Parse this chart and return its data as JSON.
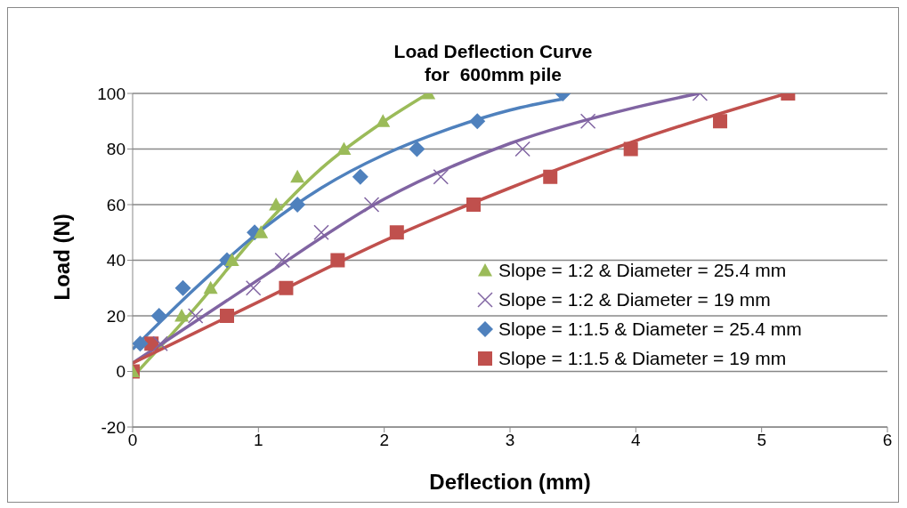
{
  "chart_data": {
    "type": "scatter",
    "title": "Load Deflection Curve\nfor  600mm pile",
    "xlabel": "Deflection (mm)",
    "ylabel": "Load (N)",
    "xlim": [
      0,
      6
    ],
    "xticks": [
      0,
      1,
      2,
      3,
      4,
      5,
      6
    ],
    "ylim": [
      -20,
      100
    ],
    "yticks": [
      -20,
      0,
      20,
      40,
      60,
      80,
      100
    ],
    "grid": "y",
    "legend": "bottom right",
    "series": [
      {
        "name": "Slope = 1:2 & Diameter = 25.4 mm",
        "color": "#9bbb59",
        "marker": "triangle",
        "x": [
          0,
          0.39,
          0.62,
          0.79,
          1.02,
          1.14,
          1.31,
          1.68,
          1.99,
          2.35
        ],
        "values": [
          0,
          20,
          30,
          40,
          50,
          60,
          70,
          80,
          90,
          100
        ]
      },
      {
        "name": "Slope = 1:2 & Diameter = 19 mm",
        "color": "#8064a2",
        "marker": "cross",
        "x": [
          0.22,
          0.5,
          0.96,
          1.19,
          1.5,
          1.9,
          2.45,
          3.1,
          3.62,
          4.51
        ],
        "values": [
          10,
          20,
          30,
          40,
          50,
          60,
          70,
          80,
          90,
          100
        ]
      },
      {
        "name": "Slope = 1:1.5 & Diameter = 25.4 mm",
        "color": "#4f81bd",
        "marker": "diamond",
        "x": [
          0.06,
          0.21,
          0.4,
          0.75,
          0.97,
          1.31,
          1.81,
          2.26,
          2.74,
          3.42
        ],
        "values": [
          10,
          20,
          30,
          40,
          50,
          60,
          70,
          80,
          90,
          100
        ]
      },
      {
        "name": "Slope = 1:1.5 & Diameter = 19 mm",
        "color": "#c0504d",
        "marker": "square",
        "x": [
          0,
          0.15,
          0.75,
          1.22,
          1.63,
          2.1,
          2.71,
          3.32,
          3.96,
          4.67,
          5.21
        ],
        "values": [
          0,
          10,
          20,
          30,
          40,
          50,
          60,
          70,
          80,
          90,
          100
        ]
      },
      {
        "type": "line",
        "color": "#9bbb59",
        "marker": "none",
        "x": [
          0,
          0.5,
          1,
          1.5,
          2,
          2.35
        ],
        "values": [
          -2,
          23,
          50,
          73,
          90,
          100
        ]
      },
      {
        "type": "line",
        "color": "#8064a2",
        "marker": "none",
        "x": [
          0,
          1,
          2,
          3,
          4,
          4.5
        ],
        "values": [
          3,
          33,
          62,
          82,
          95,
          100
        ]
      },
      {
        "type": "line",
        "color": "#4f81bd",
        "marker": "none",
        "x": [
          0,
          0.5,
          1,
          1.5,
          2,
          2.5,
          3,
          3.42
        ],
        "values": [
          8,
          30,
          50,
          66,
          78,
          87,
          94,
          98
        ]
      },
      {
        "type": "line",
        "color": "#c0504d",
        "marker": "none",
        "x": [
          0,
          1,
          2,
          3,
          4,
          5.2
        ],
        "values": [
          3,
          25,
          47,
          66,
          83,
          100
        ]
      }
    ]
  }
}
